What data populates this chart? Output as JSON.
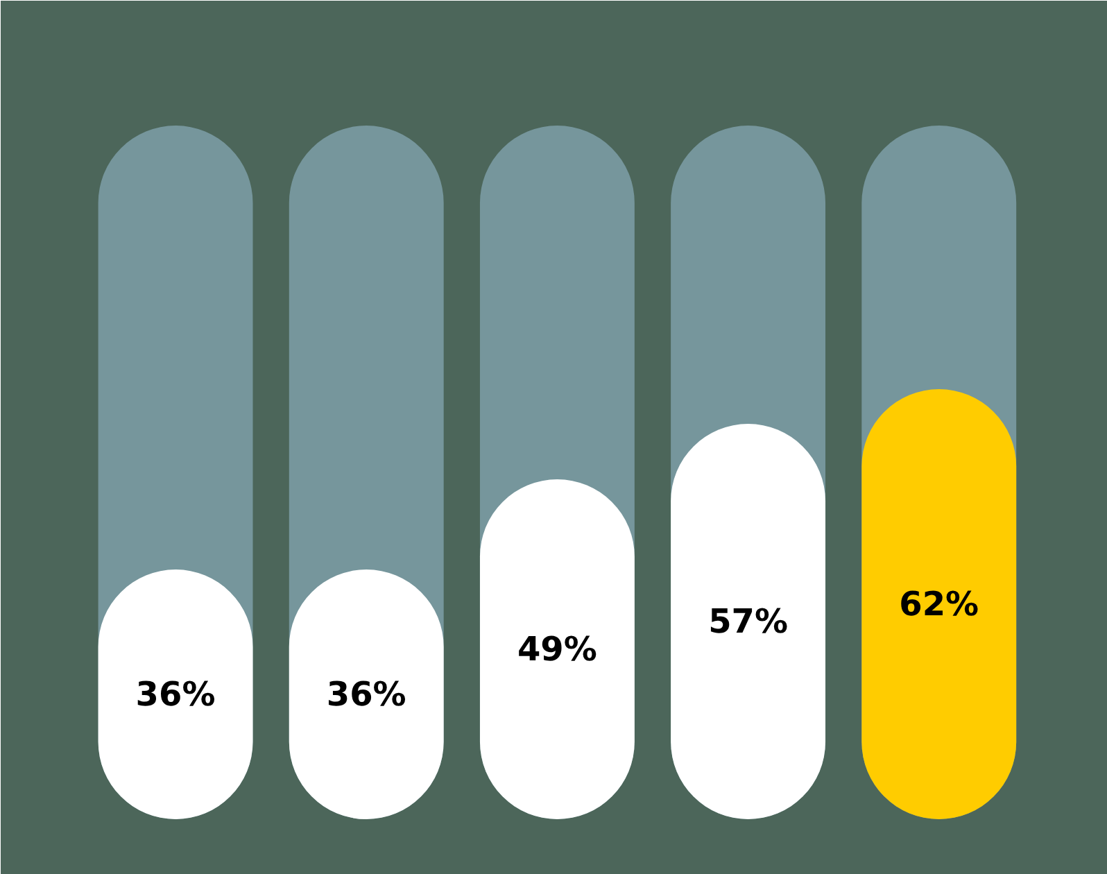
{
  "chart_data": {
    "type": "bar",
    "categories": [
      null,
      null,
      null,
      null,
      null
    ],
    "values": [
      36,
      36,
      49,
      57,
      62
    ],
    "colors": [
      "#ffffff",
      "#ffffff",
      "#ffffff",
      "#ffffff",
      "#ffcc00"
    ],
    "value_labels": [
      "36%",
      "36%",
      "49%",
      "57%",
      "62%"
    ],
    "ylim": [
      0,
      100
    ]
  }
}
